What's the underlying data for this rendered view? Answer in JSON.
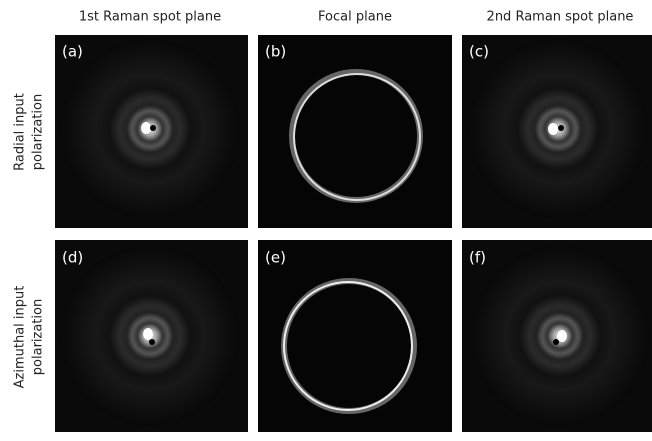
{
  "column_headers": [
    "1st Raman spot plane",
    "Focal plane",
    "2nd Raman spot plane"
  ],
  "row_labels": [
    {
      "lines": [
        "Radial input",
        "polarization"
      ]
    },
    {
      "lines": [
        "Azimuthal input",
        "polarization"
      ]
    }
  ],
  "panels": [
    {
      "label": "(a)"
    },
    {
      "label": "(b)"
    },
    {
      "label": "(c)"
    },
    {
      "label": "(d)"
    },
    {
      "label": "(e)"
    },
    {
      "label": "(f)"
    }
  ]
}
